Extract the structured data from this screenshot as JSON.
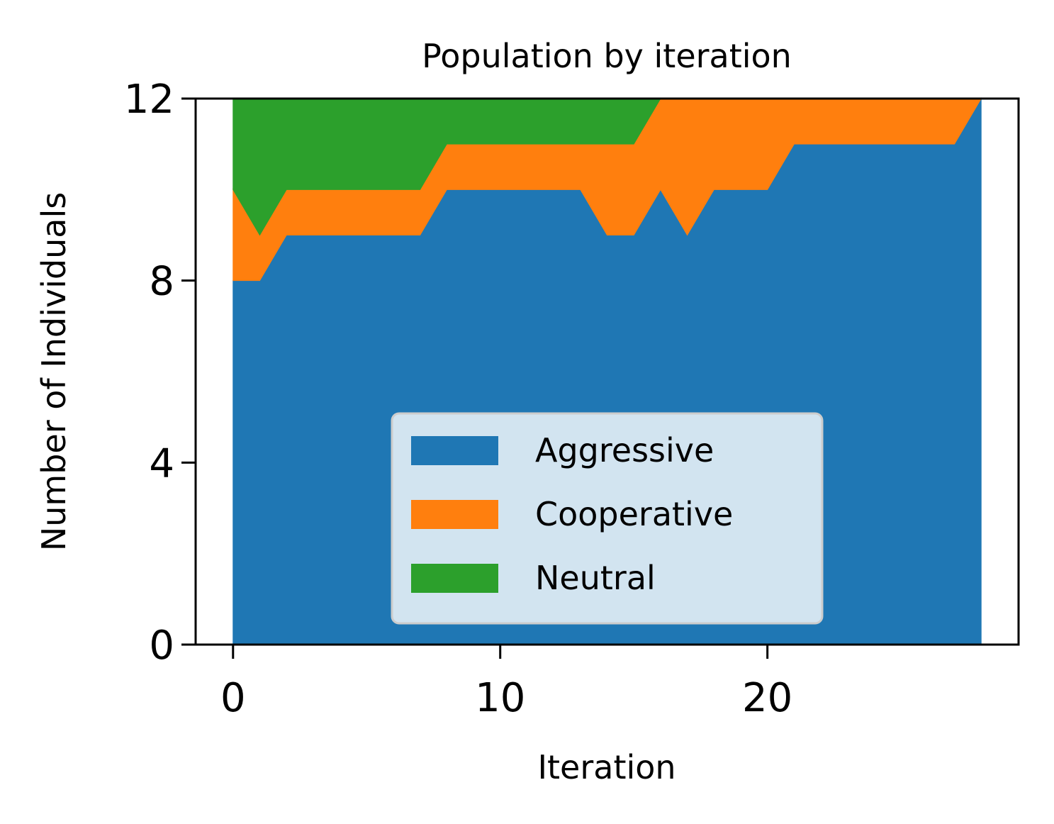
{
  "chart_data": {
    "type": "area",
    "stacked": true,
    "title": "Population by iteration",
    "xlabel": "Iteration",
    "ylabel": "Number of Individuals",
    "xlim": [
      -1.4,
      29.4
    ],
    "ylim": [
      0,
      12
    ],
    "xticks": [
      0,
      10,
      20
    ],
    "yticks": [
      0,
      4,
      8,
      12
    ],
    "grid": false,
    "legend_position": "lower center",
    "x": [
      0,
      1,
      2,
      3,
      4,
      5,
      6,
      7,
      8,
      9,
      10,
      11,
      12,
      13,
      14,
      15,
      16,
      17,
      18,
      19,
      20,
      21,
      22,
      23,
      24,
      25,
      26,
      27,
      28
    ],
    "series": [
      {
        "name": "Aggressive",
        "color": "#1f77b4",
        "values": [
          8,
          8,
          9,
          9,
          9,
          9,
          9,
          9,
          10,
          10,
          10,
          10,
          10,
          10,
          9,
          9,
          10,
          9,
          10,
          10,
          10,
          11,
          11,
          11,
          11,
          11,
          11,
          11,
          12
        ]
      },
      {
        "name": "Cooperative",
        "color": "#ff7f0e",
        "values": [
          2,
          1,
          1,
          1,
          1,
          1,
          1,
          1,
          1,
          1,
          1,
          1,
          1,
          1,
          2,
          2,
          2,
          3,
          2,
          2,
          2,
          1,
          1,
          1,
          1,
          1,
          1,
          1,
          0
        ]
      },
      {
        "name": "Neutral",
        "color": "#2ca02c",
        "values": [
          2,
          3,
          2,
          2,
          2,
          2,
          2,
          2,
          1,
          1,
          1,
          1,
          1,
          1,
          1,
          1,
          0,
          0,
          0,
          0,
          0,
          0,
          0,
          0,
          0,
          0,
          0,
          0,
          0
        ]
      }
    ]
  }
}
